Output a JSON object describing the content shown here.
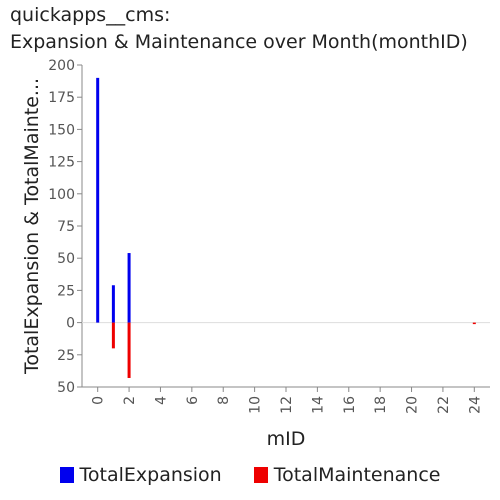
{
  "chart_data": {
    "type": "bar",
    "title_line1": "quickapps__cms:",
    "title_line2": "Expansion & Maintenance over Month(monthID)",
    "xlabel": "mID",
    "ylabel": "TotalExpansion & TotalMainte...",
    "xlim": [
      -1,
      25
    ],
    "x_ticks": [
      0,
      2,
      4,
      6,
      8,
      10,
      12,
      14,
      16,
      18,
      20,
      22,
      24
    ],
    "ylim": [
      -50,
      200
    ],
    "y_ticks": [
      200,
      175,
      150,
      125,
      100,
      75,
      50,
      25,
      0,
      -25,
      -50
    ],
    "y_tick_labels": [
      "200",
      "175",
      "150",
      "125",
      "100",
      "75",
      "50",
      "25",
      "0",
      "25",
      "50"
    ],
    "series": [
      {
        "name": "TotalExpansion",
        "color": "#0000ee",
        "points": [
          {
            "x": 0,
            "y": 190
          },
          {
            "x": 1,
            "y": 29
          },
          {
            "x": 2,
            "y": 54
          }
        ]
      },
      {
        "name": "TotalMaintenance",
        "color": "#ee0000",
        "points": [
          {
            "x": 1,
            "y": -20
          },
          {
            "x": 2,
            "y": -43
          },
          {
            "x": 24,
            "y": -1
          }
        ]
      }
    ],
    "legend_position": "bottom",
    "grid": false
  }
}
